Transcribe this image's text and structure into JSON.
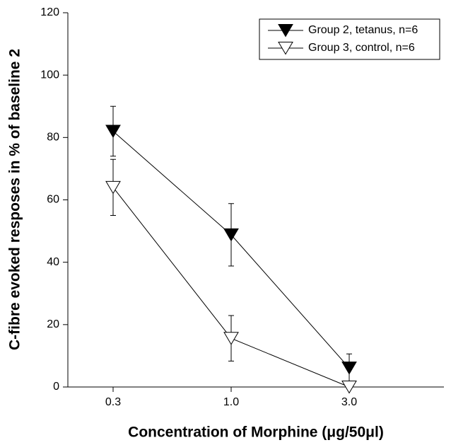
{
  "chart_data": {
    "type": "line",
    "xlabel": "Concentration of Morphine (μg/50μl)",
    "ylabel": "C-fibre evoked resposes in % of baseline 2",
    "categories": [
      "0.3",
      "1.0",
      "3.0"
    ],
    "series": [
      {
        "name": "Group 2, tetanus, n=6",
        "color": "#000000",
        "marker": "filled",
        "values": [
          82,
          48.8,
          6.1
        ],
        "errors": [
          8,
          10,
          4.5
        ]
      },
      {
        "name": "Group 3, control, n=6",
        "color": "#000000",
        "marker": "open",
        "values": [
          64,
          15.6,
          0
        ],
        "errors": [
          9,
          7.3,
          0
        ]
      }
    ],
    "ylim": [
      0,
      120
    ],
    "yticks": [
      0,
      20,
      40,
      60,
      80,
      100,
      120
    ],
    "legend": "upper right"
  }
}
